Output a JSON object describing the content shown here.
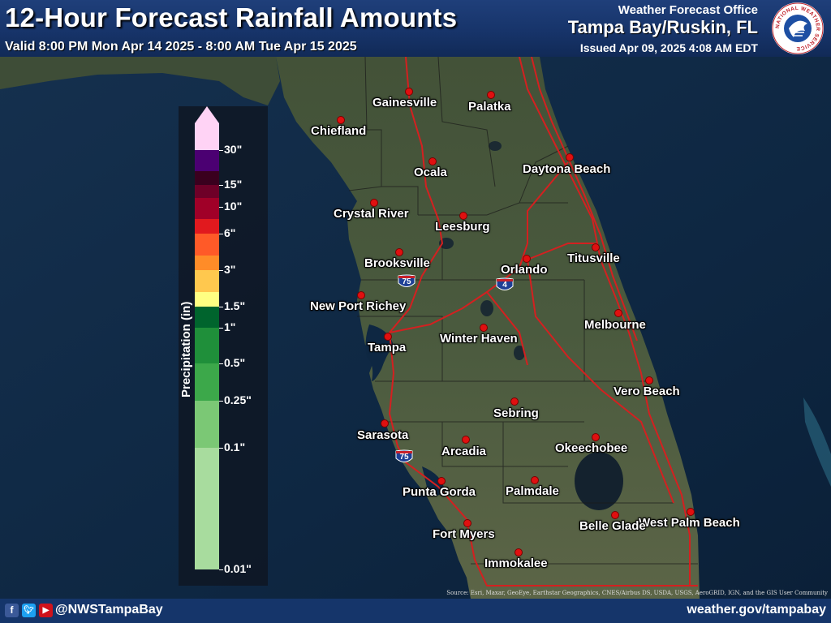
{
  "header": {
    "title": "12-Hour Forecast Rainfall Amounts",
    "valid": "Valid 8:00 PM Mon Apr 14 2025 - 8:00 AM Tue Apr 15 2025",
    "office_line": "Weather Forecast Office",
    "office_name": "Tampa Bay/Ruskin, FL",
    "issued": "Issued Apr 09, 2025 4:08 AM EDT"
  },
  "logo": {
    "name": "nws-logo",
    "text": "NATIONAL WEATHER SERVICE"
  },
  "colors": {
    "header_bg": "#17346a",
    "footer_bg": "#15356a",
    "ocean": "#0e2742",
    "land": "#3f4e38",
    "road": "#d42020",
    "city_dot": "#e01010"
  },
  "legend": {
    "title": "Precipitation (in)",
    "ticks": [
      "30\"",
      "15\"",
      "10\"",
      "6\"",
      "3\"",
      "1.5\"",
      "1\"",
      "0.5\"",
      "0.25\"",
      "0.1\"",
      "0.01\""
    ],
    "colors": [
      "#ffd3f5",
      "#4b0072",
      "#3a001e",
      "#6e0028",
      "#a00028",
      "#e1191e",
      "#ff5a28",
      "#ff8c28",
      "#ffc84e",
      "#ffff82",
      "#00642d",
      "#1f8f3a",
      "#3ca84a",
      "#7bc875",
      "#a8dc9e",
      "#cbebc4"
    ]
  },
  "cities": [
    "Gainesville",
    "Palatka",
    "Chiefland",
    "Ocala",
    "Daytona Beach",
    "Crystal River",
    "Leesburg",
    "Titusville",
    "Brooksville",
    "Orlando",
    "New Port Richey",
    "Melbourne",
    "Winter Haven",
    "Tampa",
    "Vero Beach",
    "Sebring",
    "Sarasota",
    "Arcadia",
    "Okeechobee",
    "Punta Gorda",
    "Palmdale",
    "West Palm Beach",
    "Belle Glade",
    "Fort Myers",
    "Immokalee"
  ],
  "interstates": [
    "75",
    "4",
    "75"
  ],
  "attribution": "Source: Esri, Maxar, GeoEye, Earthstar Geographics, CNES/Airbus DS, USDA, USGS, AeroGRID, IGN, and the GIS User Community",
  "footer": {
    "icons": [
      "facebook-icon",
      "twitter-icon",
      "youtube-icon"
    ],
    "handle": "@NWSTampaBay",
    "website": "weather.gov/tampabay"
  }
}
